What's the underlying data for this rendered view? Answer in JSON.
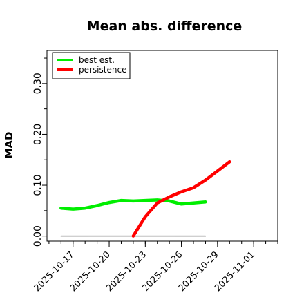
{
  "chart_data": {
    "type": "line",
    "title": "Mean abs. difference",
    "xlabel": "",
    "ylabel": "MAD",
    "xlim": [
      "2025-10-14T20:00",
      "2025-11-03"
    ],
    "ylim": [
      -0.01,
      0.365
    ],
    "x_ticks": [
      "2025-10-17",
      "2025-10-20",
      "2025-10-23",
      "2025-10-26",
      "2025-10-29",
      "2025-11-01"
    ],
    "y_ticks": [
      0.0,
      0.1,
      0.2,
      0.3
    ],
    "y_tick_labels": [
      "0.00",
      "0.10",
      "0.20",
      "0.30"
    ],
    "grid": false,
    "legend_position": "top-left",
    "series": [
      {
        "name": "best est.",
        "color": "#00ee00",
        "x": [
          "2025-10-16",
          "2025-10-17",
          "2025-10-18",
          "2025-10-19",
          "2025-10-20",
          "2025-10-21",
          "2025-10-22",
          "2025-10-23",
          "2025-10-24",
          "2025-10-25",
          "2025-10-26",
          "2025-10-27",
          "2025-10-28"
        ],
        "values": [
          0.055,
          0.053,
          0.055,
          0.06,
          0.066,
          0.07,
          0.069,
          0.07,
          0.071,
          0.069,
          0.063,
          0.065,
          0.067
        ]
      },
      {
        "name": "persistence",
        "color": "#ff0000",
        "x": [
          "2025-10-22",
          "2025-10-23",
          "2025-10-24",
          "2025-10-25",
          "2025-10-26",
          "2025-10-27",
          "2025-10-28",
          "2025-10-29",
          "2025-10-30"
        ],
        "values": [
          0.0,
          0.038,
          0.065,
          0.077,
          0.087,
          0.095,
          0.11,
          0.128,
          0.146
        ]
      },
      {
        "name": "",
        "color": "#808080",
        "x": [
          "2025-10-16",
          "2025-10-28"
        ],
        "values": [
          0.0,
          0.0
        ]
      }
    ]
  }
}
